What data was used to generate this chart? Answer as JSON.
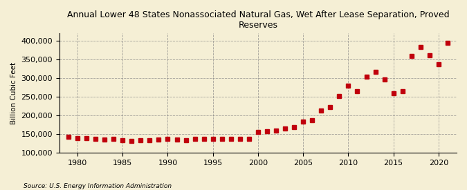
{
  "title": "Annual Lower 48 States Nonassociated Natural Gas, Wet After Lease Separation, Proved\nReserves",
  "ylabel": "Billion Cubic Feet",
  "source": "Source: U.S. Energy Information Administration",
  "background_color": "#f5efd5",
  "marker_color": "#c0000c",
  "years": [
    1979,
    1980,
    1981,
    1982,
    1983,
    1984,
    1985,
    1986,
    1987,
    1988,
    1989,
    1990,
    1991,
    1992,
    1993,
    1994,
    1995,
    1996,
    1997,
    1998,
    1999,
    2000,
    2001,
    2002,
    2003,
    2004,
    2005,
    2006,
    2007,
    2008,
    2009,
    2010,
    2011,
    2012,
    2013,
    2014,
    2015,
    2016,
    2017,
    2018,
    2019,
    2020,
    2021
  ],
  "values": [
    143000,
    139000,
    139000,
    138000,
    136000,
    138000,
    134000,
    131000,
    133000,
    134000,
    135000,
    138000,
    136000,
    134000,
    137000,
    138000,
    137000,
    137000,
    138000,
    137000,
    138000,
    155000,
    158000,
    160000,
    165000,
    168000,
    183000,
    188000,
    214000,
    222000,
    252000,
    280000,
    265000,
    304000,
    317000,
    296000,
    259000,
    265000,
    360000,
    383000,
    362000,
    337000,
    395000
  ],
  "xlim": [
    1978,
    2022
  ],
  "ylim": [
    100000,
    420000
  ],
  "yticks": [
    100000,
    150000,
    200000,
    250000,
    300000,
    350000,
    400000
  ],
  "xticks": [
    1980,
    1985,
    1990,
    1995,
    2000,
    2005,
    2010,
    2015,
    2020
  ]
}
